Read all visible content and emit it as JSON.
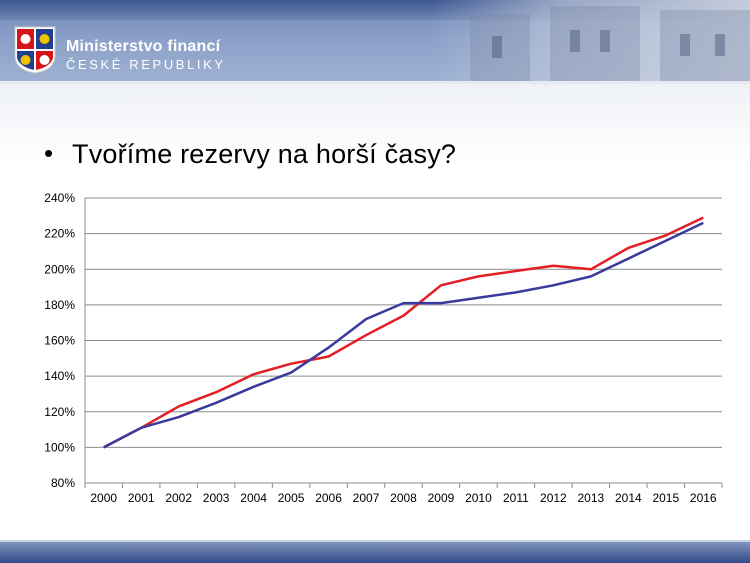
{
  "header": {
    "org_name": "Ministerstvo financí",
    "org_sub": "ČESKÉ REPUBLIKY",
    "colors": {
      "band": "#6f86b4",
      "dark": "#2f4a86"
    }
  },
  "slide": {
    "bullet": "•",
    "title": "Tvoříme rezervy na horší časy?"
  },
  "chart_data": {
    "type": "line",
    "title": "",
    "xlabel": "",
    "ylabel": "",
    "x": [
      "2000",
      "2001",
      "2002",
      "2003",
      "2004",
      "2005",
      "2006",
      "2007",
      "2008",
      "2009",
      "2010",
      "2011",
      "2012",
      "2013",
      "2014",
      "2015",
      "2016"
    ],
    "y_ticks": [
      "80%",
      "100%",
      "120%",
      "140%",
      "160%",
      "180%",
      "200%",
      "220%",
      "240%"
    ],
    "ylim": [
      80,
      240
    ],
    "grid": true,
    "legend": "none",
    "series": [
      {
        "color": "#e31e24",
        "values": [
          100,
          111,
          123,
          131,
          141,
          147,
          151,
          163,
          174,
          191,
          196,
          199,
          202,
          200,
          212,
          219,
          229
        ]
      },
      {
        "color": "#3a3a9c",
        "values": [
          100,
          111,
          117,
          125,
          134,
          142,
          156,
          172,
          181,
          181,
          184,
          187,
          191,
          196,
          206,
          216,
          226
        ]
      }
    ]
  }
}
